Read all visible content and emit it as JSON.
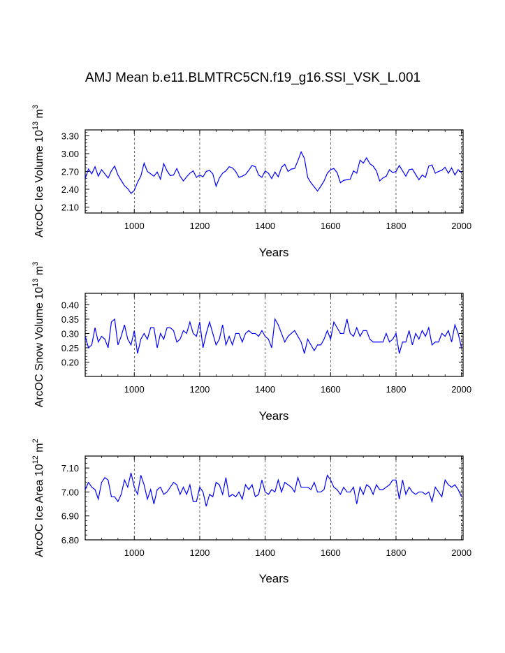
{
  "figure": {
    "title": "AMJ Mean b.e11.BLMTRC5CN.f19_g16.SSI_VSK_L.001",
    "line_color": "#0000ff"
  },
  "chart_data": [
    {
      "type": "line",
      "xlabel": "Years",
      "ylabel": {
        "base": "ArcOC Ice Volume 10",
        "exp1": "13",
        "mid": " m",
        "exp2": "3"
      },
      "xlim": [
        850,
        2005
      ],
      "ylim": [
        2.0,
        3.4
      ],
      "xticks": [
        1000,
        1200,
        1400,
        1600,
        1800,
        2000
      ],
      "xtick_labels": [
        "1000",
        "1200",
        "1400",
        "1600",
        "1800",
        "2000"
      ],
      "yticks": [
        2.1,
        2.4,
        2.7,
        3.0,
        3.3
      ],
      "ytick_labels": [
        "2.10",
        "2.40",
        "2.70",
        "3.00",
        "3.30"
      ],
      "vgrid": "dashed at x ticks",
      "series_x_start": 850,
      "series_x_step": 10,
      "values": [
        2.58,
        2.74,
        2.66,
        2.78,
        2.62,
        2.73,
        2.66,
        2.59,
        2.71,
        2.79,
        2.64,
        2.55,
        2.46,
        2.41,
        2.33,
        2.38,
        2.52,
        2.62,
        2.84,
        2.7,
        2.66,
        2.62,
        2.69,
        2.57,
        2.83,
        2.71,
        2.63,
        2.64,
        2.75,
        2.62,
        2.54,
        2.61,
        2.67,
        2.71,
        2.6,
        2.64,
        2.61,
        2.7,
        2.72,
        2.66,
        2.45,
        2.59,
        2.67,
        2.71,
        2.78,
        2.76,
        2.7,
        2.6,
        2.62,
        2.65,
        2.72,
        2.8,
        2.78,
        2.64,
        2.6,
        2.71,
        2.67,
        2.58,
        2.69,
        2.61,
        2.77,
        2.82,
        2.7,
        2.74,
        2.75,
        2.88,
        3.03,
        2.92,
        2.6,
        2.51,
        2.44,
        2.37,
        2.45,
        2.54,
        2.67,
        2.73,
        2.75,
        2.68,
        2.51,
        2.55,
        2.56,
        2.57,
        2.71,
        2.67,
        2.89,
        2.84,
        2.93,
        2.83,
        2.79,
        2.71,
        2.54,
        2.59,
        2.62,
        2.73,
        2.68,
        2.7,
        2.8,
        2.71,
        2.62,
        2.73,
        2.74,
        2.65,
        2.56,
        2.64,
        2.6,
        2.79,
        2.81,
        2.67,
        2.7,
        2.72,
        2.77,
        2.67,
        2.76,
        2.64,
        2.73,
        2.68
      ]
    },
    {
      "type": "line",
      "xlabel": "Years",
      "ylabel": {
        "base": "ArcOC Snow Volume 10",
        "exp1": "13",
        "mid": " m",
        "exp2": "3"
      },
      "xlim": [
        850,
        2005
      ],
      "ylim": [
        0.15,
        0.44
      ],
      "xticks": [
        1000,
        1200,
        1400,
        1600,
        1800,
        2000
      ],
      "xtick_labels": [
        "1000",
        "1200",
        "1400",
        "1600",
        "1800",
        "2000"
      ],
      "yticks": [
        0.2,
        0.25,
        0.3,
        0.35,
        0.4
      ],
      "ytick_labels": [
        "0.20",
        "0.25",
        "0.30",
        "0.35",
        "0.40"
      ],
      "vgrid": "dashed at x ticks",
      "series_x_start": 850,
      "series_x_step": 10,
      "values": [
        0.29,
        0.25,
        0.26,
        0.32,
        0.27,
        0.29,
        0.28,
        0.25,
        0.34,
        0.35,
        0.26,
        0.29,
        0.33,
        0.28,
        0.26,
        0.31,
        0.23,
        0.28,
        0.3,
        0.28,
        0.32,
        0.32,
        0.25,
        0.3,
        0.28,
        0.32,
        0.32,
        0.31,
        0.27,
        0.28,
        0.31,
        0.3,
        0.34,
        0.3,
        0.29,
        0.34,
        0.25,
        0.3,
        0.34,
        0.3,
        0.26,
        0.28,
        0.33,
        0.26,
        0.29,
        0.26,
        0.3,
        0.3,
        0.27,
        0.3,
        0.31,
        0.3,
        0.3,
        0.29,
        0.31,
        0.29,
        0.28,
        0.25,
        0.35,
        0.33,
        0.3,
        0.27,
        0.29,
        0.3,
        0.31,
        0.29,
        0.27,
        0.23,
        0.28,
        0.26,
        0.24,
        0.26,
        0.26,
        0.28,
        0.31,
        0.28,
        0.34,
        0.32,
        0.3,
        0.3,
        0.35,
        0.3,
        0.29,
        0.32,
        0.29,
        0.31,
        0.31,
        0.28,
        0.27,
        0.27,
        0.27,
        0.27,
        0.3,
        0.27,
        0.28,
        0.3,
        0.23,
        0.27,
        0.27,
        0.31,
        0.26,
        0.3,
        0.28,
        0.31,
        0.29,
        0.32,
        0.26,
        0.27,
        0.27,
        0.3,
        0.29,
        0.31,
        0.27,
        0.33,
        0.3,
        0.25
      ]
    },
    {
      "type": "line",
      "xlabel": "Years",
      "ylabel": {
        "base": "ArcOC Ice Area 10",
        "exp1": "12",
        "mid": " m",
        "exp2": "2"
      },
      "xlim": [
        850,
        2005
      ],
      "ylim": [
        6.8,
        7.15
      ],
      "xticks": [
        1000,
        1200,
        1400,
        1600,
        1800,
        2000
      ],
      "xtick_labels": [
        "1000",
        "1200",
        "1400",
        "1600",
        "1800",
        "2000"
      ],
      "yticks": [
        6.8,
        6.9,
        7.0,
        7.1
      ],
      "ytick_labels": [
        "6.80",
        "6.90",
        "7.00",
        "7.10"
      ],
      "vgrid": "dashed at x ticks",
      "series_x_start": 850,
      "series_x_step": 10,
      "values": [
        7.01,
        7.04,
        7.02,
        7.01,
        6.97,
        7.04,
        7.06,
        7.05,
        6.98,
        6.98,
        6.96,
        6.99,
        7.05,
        7.02,
        7.08,
        7.02,
        6.99,
        7.07,
        7.03,
        6.97,
        7.01,
        6.95,
        7.01,
        7.02,
        6.99,
        7.0,
        7.02,
        7.04,
        7.03,
        6.99,
        7.02,
        6.99,
        7.03,
        6.96,
        6.96,
        7.02,
        7.0,
        6.94,
        6.99,
        6.98,
        7.04,
        7.03,
        6.99,
        7.06,
        6.98,
        6.99,
        6.98,
        7.0,
        6.97,
        7.03,
        7.01,
        7.03,
        6.98,
        6.99,
        7.05,
        7.0,
        6.99,
        7.01,
        7.0,
        7.05,
        7.0,
        7.04,
        7.03,
        7.02,
        7.0,
        7.06,
        7.02,
        7.02,
        7.02,
        7.01,
        7.04,
        7.0,
        7.0,
        7.01,
        7.07,
        7.05,
        7.02,
        7.01,
        6.99,
        7.02,
        7.0,
        7.0,
        7.02,
        6.95,
        7.02,
        6.99,
        7.03,
        7.02,
        6.99,
        7.03,
        7.01,
        7.01,
        7.02,
        7.03,
        7.05,
        7.05,
        6.97,
        7.05,
        6.99,
        7.02,
        7.0,
        6.99,
        7.0,
        7.0,
        6.99,
        7.0,
        6.96,
        7.02,
        7.0,
        6.98,
        7.05,
        7.03,
        7.02,
        7.03,
        7.01,
        6.98
      ]
    }
  ]
}
